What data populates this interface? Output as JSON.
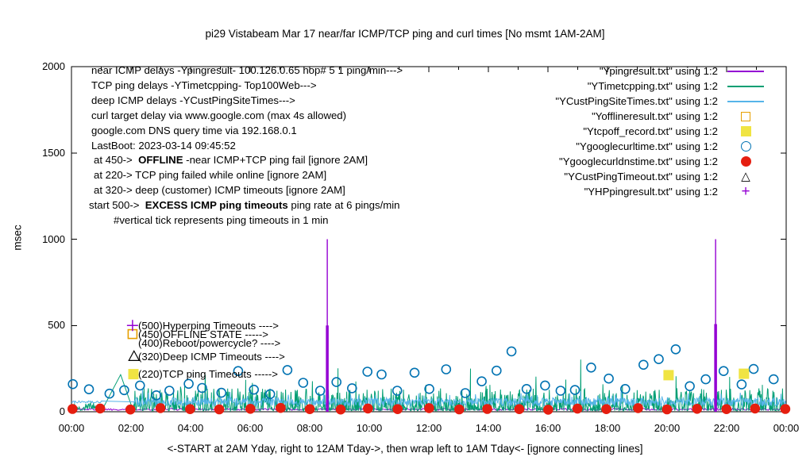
{
  "chart_data": {
    "type": "line",
    "title": "pi29 Vistabeam Mar 17  near/far ICMP/TCP ping and curl times [No msmt 1AM-2AM]",
    "xlabel": "<-START at 2AM Yday, right to 12AM Tday->, then wrap left to 1AM Tday<- [ignore connecting lines]",
    "ylabel": "msec",
    "ylim": [
      0,
      2000
    ],
    "xlim_hours": [
      0,
      24
    ],
    "grid": false,
    "legend_position": "top-right",
    "x_ticks": [
      "00:00",
      "02:00",
      "04:00",
      "06:00",
      "08:00",
      "10:00",
      "12:00",
      "14:00",
      "16:00",
      "18:00",
      "20:00",
      "22:00",
      "00:00"
    ],
    "y_ticks": [
      0,
      500,
      1000,
      1500,
      2000
    ],
    "noise_seed": 1337,
    "annotations_topleft": [
      {
        "indent": 0,
        "parts": [
          {
            "t": "near ICMP delays -Ypingresult- 100.126.0.65 hop# 5 1 ping/min--->"
          }
        ]
      },
      {
        "indent": 0,
        "parts": [
          {
            "t": "TCP ping delays -YTimetcpping- Top100Web--->"
          }
        ]
      },
      {
        "indent": 0,
        "parts": [
          {
            "t": "deep ICMP delays -YCustPingSiteTimes--->"
          }
        ]
      },
      {
        "indent": 0,
        "parts": [
          {
            "t": "curl target delay via www.google.com (max 4s allowed)"
          }
        ]
      },
      {
        "indent": 0,
        "parts": [
          {
            "t": "google.com DNS query time via 192.168.0.1"
          }
        ]
      },
      {
        "indent": 0,
        "parts": [
          {
            "t": "LastBoot: 2023-03-14 09:45:52"
          }
        ]
      },
      {
        "indent": 3,
        "parts": [
          {
            "t": "at 450->  "
          },
          {
            "t": "OFFLINE",
            "b": true
          },
          {
            "t": " -near ICMP+TCP ping fail [ignore 2AM]"
          }
        ]
      },
      {
        "indent": 3,
        "parts": [
          {
            "t": "at 220-> TCP ping failed while online [ignore 2AM]"
          }
        ]
      },
      {
        "indent": 3,
        "parts": [
          {
            "t": "at 320-> deep (customer) ICMP timeouts [ignore 2AM]"
          }
        ]
      },
      {
        "indent": -3,
        "parts": [
          {
            "t": "start 500->  "
          },
          {
            "t": "EXCESS ICMP ping timeouts",
            "b": true
          },
          {
            "t": " ping rate at 6 pings/min"
          }
        ]
      },
      {
        "indent": 28,
        "parts": [
          {
            "t": "#vertical tick represents ping timeouts in 1 min"
          }
        ]
      }
    ],
    "annotations_mid": [
      {
        "value": 500,
        "text": "(500)Hyperping Timeouts ---->"
      },
      {
        "value": 450,
        "text": "(450)OFFLINE STATE ----->"
      },
      {
        "value": 400,
        "text": "(400)Reboot/powercycle? ---->"
      },
      {
        "value": 320,
        "text": "(320)Deep ICMP Timeouts ---->"
      },
      {
        "value": 220,
        "text": "(220)TCP ping Timeouts ----->"
      }
    ],
    "legend": [
      {
        "label": "\"Ypingresult.txt\" using 1:2",
        "marker": "line",
        "color": "#9400d3"
      },
      {
        "label": "\"YTimetcpping.txt\" using 1:2",
        "marker": "line",
        "color": "#009e73"
      },
      {
        "label": "\"YCustPingSiteTimes.txt\" using 1:2",
        "marker": "line",
        "color": "#56b4e9"
      },
      {
        "label": "\"Yofflineresult.txt\" using 1:2",
        "marker": "open-square",
        "color": "#e69f00"
      },
      {
        "label": "\"Ytcpoff_record.txt\" using 1:2",
        "marker": "filled-square",
        "color": "#f0e442"
      },
      {
        "label": "\"Ygooglecurltime.txt\" using 1:2",
        "marker": "open-circle",
        "color": "#0072b2"
      },
      {
        "label": "\"Ygooglecurldnstime.txt\" using 1:2",
        "marker": "filled-circle",
        "color": "#e51e10"
      },
      {
        "label": "\"YCustPingTimeout.txt\" using 1:2",
        "marker": "open-triangle",
        "color": "#000000"
      },
      {
        "label": "\"YHPpingresult.txt\" using 1:2",
        "marker": "plus",
        "color": "#9400d3"
      }
    ],
    "series": {
      "near_icmp_ping": {
        "name": "Ypingresult",
        "color": "#9400d3",
        "baseline_msec": 14,
        "spikes": [
          {
            "x": 8.59,
            "peak": 1000,
            "thick_to": 500
          },
          {
            "x": 21.63,
            "peak": 1000,
            "thick_to": 508
          }
        ]
      },
      "tcp_ping": {
        "name": "YTimetcpping",
        "color": "#009e73",
        "baseline_msec": 20,
        "noise_max": 130,
        "gap_connector": {
          "from_hour": 1.04,
          "to_hour": 2.06,
          "from_msec": 52,
          "to_msec": 12
        },
        "spikes": [
          [
            1.65,
            215
          ],
          [
            3.8,
            152
          ],
          [
            4.7,
            112
          ],
          [
            5.85,
            185
          ],
          [
            6.9,
            122
          ],
          [
            8.95,
            252
          ],
          [
            9.55,
            175
          ],
          [
            10.3,
            122
          ],
          [
            11.9,
            156
          ],
          [
            13.4,
            250
          ],
          [
            14.05,
            156
          ],
          [
            15.05,
            126
          ],
          [
            16.6,
            186
          ],
          [
            17.1,
            302
          ],
          [
            18.5,
            156
          ],
          [
            20.3,
            206
          ],
          [
            22.1,
            202
          ],
          [
            23.2,
            156
          ]
        ]
      },
      "deep_icmp": {
        "name": "YCustPingSiteTimes",
        "color": "#56b4e9",
        "baseline_msec": 56,
        "noise_max": 110,
        "flat_connector": {
          "from_hour": 1.02,
          "to_hour": 2.1,
          "msec": 57
        }
      },
      "offline": {
        "name": "Yofflineresult",
        "color": "#e69f00",
        "points": [
          {
            "x": 2.05,
            "y": 450
          }
        ]
      },
      "tcp_offline": {
        "name": "Ytcpoff_record",
        "color": "#f0e442",
        "points": [
          {
            "x": 2.08,
            "y": 218
          },
          {
            "x": 20.05,
            "y": 212
          },
          {
            "x": 22.58,
            "y": 220
          }
        ]
      },
      "google_curl": {
        "name": "Ygooglecurltime",
        "color": "#0072b2",
        "x_start": 0.1,
        "x_step": 0.545,
        "values": [
          160,
          130,
          105,
          125,
          152,
          95,
          122,
          162,
          138,
          110,
          236,
          128,
          102,
          242,
          168,
          122,
          172,
          136,
          232,
          216,
          122,
          226,
          132,
          246,
          108,
          176,
          238,
          350,
          132,
          152,
          122,
          126,
          256,
          192,
          132,
          272,
          305,
          362,
          148,
          188,
          236,
          158,
          248,
          188
        ]
      },
      "google_dns": {
        "name": "Ygooglecurldnstime",
        "color": "#e51e10",
        "x_start": 0,
        "x_step": 1,
        "values": [
          16,
          19,
          13,
          21,
          15,
          14,
          17,
          22,
          15,
          13,
          19,
          15,
          21,
          14,
          16,
          15,
          12,
          18,
          15,
          21,
          14,
          17,
          15,
          19,
          16
        ]
      },
      "cust_ping_timeout": {
        "name": "YCustPingTimeout",
        "color": "#000000",
        "points": [
          {
            "x": 2.1,
            "y": 320
          }
        ]
      },
      "hp_ping": {
        "name": "YHPpingresult",
        "color": "#9400d3",
        "points": [
          {
            "x": 2.05,
            "y": 500
          }
        ]
      }
    }
  }
}
